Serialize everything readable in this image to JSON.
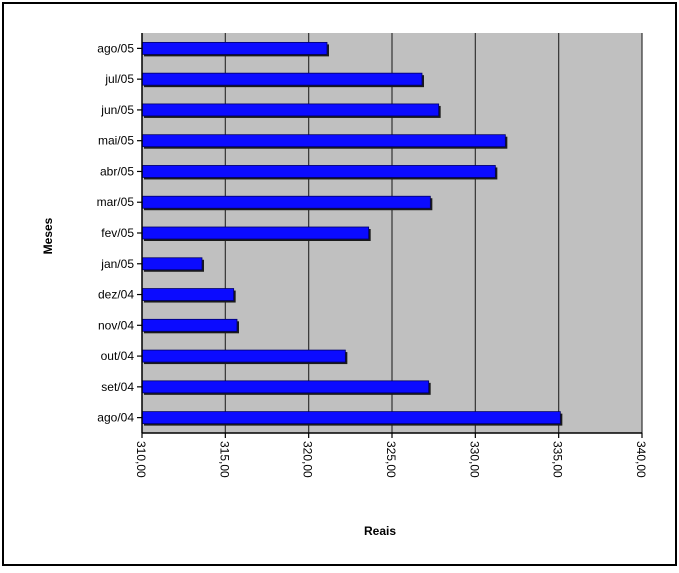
{
  "chart_data": {
    "type": "bar",
    "orientation": "horizontal",
    "xlabel": "Reais",
    "ylabel": "Meses",
    "xlim": [
      310,
      340
    ],
    "x_tick_step": 5,
    "x_tick_labels": [
      "310,00",
      "315,00",
      "320,00",
      "325,00",
      "330,00",
      "335,00",
      "340,00"
    ],
    "grid": true,
    "legend": "none",
    "bar_color": "#0b0bff",
    "plot_background": "#c0c0c0",
    "categories": [
      "ago/04",
      "set/04",
      "out/04",
      "nov/04",
      "dez/04",
      "jan/05",
      "fev/05",
      "mar/05",
      "abr/05",
      "mai/05",
      "jun/05",
      "jul/05",
      "ago/05"
    ],
    "values": [
      335.1,
      327.2,
      322.2,
      315.7,
      315.5,
      313.6,
      323.6,
      327.3,
      331.2,
      331.8,
      327.8,
      326.8,
      321.1
    ]
  }
}
